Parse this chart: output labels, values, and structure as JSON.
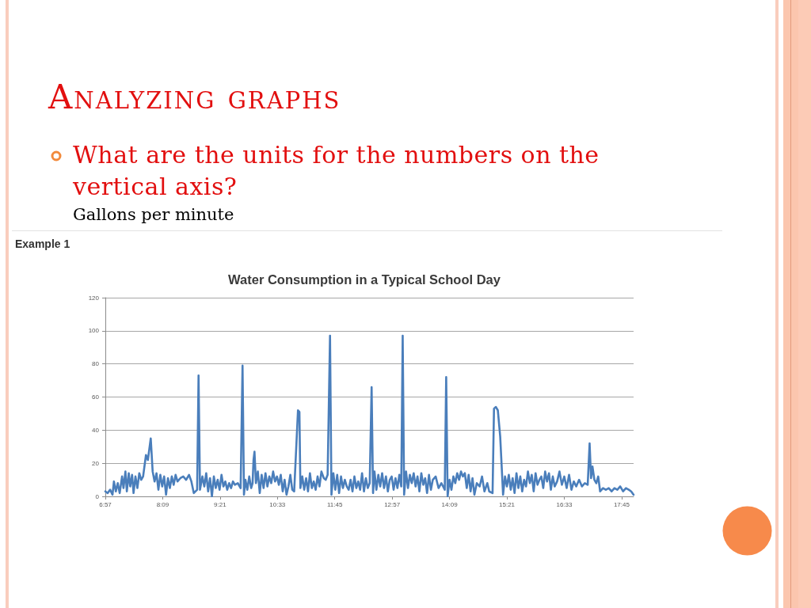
{
  "chart_data": {
    "type": "line",
    "title": "Water Consumption in a Typical School Day",
    "annotations": [
      "Analyzing graphs",
      "What are the units for the numbers on the vertical axis?",
      "Gallons per minute",
      "Example 1"
    ],
    "x": [
      6.95,
      7.0,
      7.05,
      7.1,
      7.13,
      7.17,
      7.21,
      7.25,
      7.3,
      7.33,
      7.37,
      7.4,
      7.44,
      7.47,
      7.51,
      7.54,
      7.58,
      7.62,
      7.66,
      7.7,
      7.74,
      7.8,
      7.84,
      7.9,
      7.94,
      7.98,
      8.02,
      8.06,
      8.1,
      8.14,
      8.18,
      8.22,
      8.26,
      8.3,
      8.34,
      8.38,
      8.42,
      8.46,
      8.52,
      8.58,
      8.64,
      8.7,
      8.75,
      8.8,
      8.87,
      8.9,
      8.93,
      8.98,
      9.02,
      9.06,
      9.1,
      9.14,
      9.18,
      9.22,
      9.26,
      9.3,
      9.34,
      9.38,
      9.42,
      9.46,
      9.5,
      9.54,
      9.58,
      9.62,
      9.66,
      9.72,
      9.78,
      9.82,
      9.85,
      9.88,
      9.92,
      9.96,
      10.0,
      10.03,
      10.05,
      10.07,
      10.1,
      10.14,
      10.18,
      10.22,
      10.26,
      10.3,
      10.34,
      10.38,
      10.42,
      10.46,
      10.5,
      10.54,
      10.58,
      10.62,
      10.66,
      10.7,
      10.74,
      10.78,
      10.82,
      10.86,
      10.9,
      10.98,
      11.01,
      11.03,
      11.07,
      11.11,
      11.15,
      11.19,
      11.23,
      11.27,
      11.31,
      11.35,
      11.39,
      11.43,
      11.47,
      11.52,
      11.56,
      11.6,
      11.65,
      11.68,
      11.72,
      11.76,
      11.8,
      11.84,
      11.88,
      11.92,
      11.96,
      12.0,
      12.04,
      12.08,
      12.12,
      12.16,
      12.2,
      12.24,
      12.28,
      12.32,
      12.36,
      12.4,
      12.44,
      12.48,
      12.52,
      12.55,
      12.58,
      12.62,
      12.66,
      12.7,
      12.74,
      12.78,
      12.82,
      12.86,
      12.9,
      12.94,
      12.98,
      13.02,
      13.06,
      13.1,
      13.14,
      13.17,
      13.2,
      13.24,
      13.28,
      13.32,
      13.36,
      13.4,
      13.44,
      13.48,
      13.52,
      13.56,
      13.6,
      13.64,
      13.68,
      13.72,
      13.76,
      13.8,
      13.86,
      13.92,
      13.98,
      14.05,
      14.08,
      14.11,
      14.15,
      14.19,
      14.23,
      14.27,
      14.31,
      14.35,
      14.39,
      14.43,
      14.47,
      14.51,
      14.55,
      14.59,
      14.63,
      14.67,
      14.72,
      14.78,
      14.83,
      14.88,
      14.94,
      14.98,
      15.05,
      15.08,
      15.12,
      15.16,
      15.21,
      15.27,
      15.31,
      15.35,
      15.39,
      15.43,
      15.47,
      15.51,
      15.55,
      15.59,
      15.63,
      15.67,
      15.71,
      15.75,
      15.79,
      15.83,
      15.87,
      15.91,
      15.95,
      15.99,
      16.03,
      16.07,
      16.11,
      16.15,
      16.19,
      16.23,
      16.27,
      16.31,
      16.35,
      16.4,
      16.45,
      16.5,
      16.55,
      16.6,
      16.65,
      16.7,
      16.75,
      16.8,
      16.86,
      16.92,
      16.98,
      17.04,
      17.08,
      17.11,
      17.14,
      17.18,
      17.22,
      17.26,
      17.3,
      17.36,
      17.42,
      17.48,
      17.54,
      17.6,
      17.66,
      17.72,
      17.78,
      17.84,
      17.9,
      17.95,
      18.0
    ],
    "values": [
      3,
      2,
      4,
      1,
      9,
      3,
      8,
      2,
      12,
      5,
      15,
      3,
      14,
      6,
      13,
      2,
      12,
      5,
      14,
      10,
      12,
      25,
      22,
      35,
      15,
      9,
      14,
      4,
      13,
      6,
      12,
      1,
      11,
      5,
      12,
      7,
      13,
      9,
      11,
      12,
      10,
      13,
      9,
      2,
      4,
      73,
      4,
      12,
      6,
      14,
      3,
      11,
      0,
      12,
      5,
      10,
      4,
      13,
      6,
      9,
      4,
      8,
      5,
      9,
      7,
      8,
      5,
      79,
      1,
      10,
      4,
      12,
      5,
      8,
      22,
      27,
      8,
      15,
      2,
      13,
      5,
      14,
      6,
      12,
      8,
      15,
      9,
      12,
      7,
      13,
      3,
      10,
      1,
      6,
      13,
      4,
      3,
      52,
      51,
      5,
      12,
      4,
      11,
      3,
      14,
      5,
      9,
      4,
      12,
      6,
      15,
      11,
      10,
      13,
      97,
      1,
      14,
      4,
      13,
      2,
      12,
      5,
      10,
      6,
      4,
      10,
      3,
      12,
      5,
      9,
      4,
      14,
      3,
      11,
      5,
      8,
      66,
      2,
      15,
      4,
      13,
      6,
      14,
      5,
      12,
      3,
      10,
      12,
      4,
      11,
      5,
      13,
      6,
      97,
      1,
      15,
      5,
      13,
      8,
      14,
      6,
      12,
      3,
      14,
      7,
      11,
      2,
      13,
      4,
      10,
      12,
      5,
      8,
      4,
      72,
      0,
      10,
      4,
      12,
      8,
      14,
      10,
      15,
      12,
      14,
      5,
      13,
      3,
      11,
      1,
      8,
      6,
      12,
      3,
      8,
      3,
      2,
      53,
      54,
      52,
      36,
      1,
      12,
      6,
      13,
      4,
      11,
      2,
      14,
      5,
      12,
      3,
      10,
      6,
      15,
      8,
      13,
      3,
      14,
      7,
      10,
      12,
      5,
      15,
      9,
      14,
      4,
      12,
      6,
      9,
      15,
      7,
      12,
      5,
      13,
      4,
      9,
      6,
      10,
      6,
      8,
      7,
      32,
      11,
      18,
      10,
      8,
      12,
      3,
      5,
      4,
      5,
      3,
      5,
      4,
      6,
      3,
      5,
      4,
      3,
      1
    ],
    "color": "#4a7ebb",
    "xlim": [
      6.95,
      18.0
    ],
    "xticks": [
      {
        "value": 6.95,
        "label": "6:57"
      },
      {
        "value": 8.15,
        "label": "8:09"
      },
      {
        "value": 9.35,
        "label": "9:21"
      },
      {
        "value": 10.55,
        "label": "10:33"
      },
      {
        "value": 11.75,
        "label": "11:45"
      },
      {
        "value": 12.95,
        "label": "12:57"
      },
      {
        "value": 14.15,
        "label": "14:09"
      },
      {
        "value": 15.35,
        "label": "15:21"
      },
      {
        "value": 16.55,
        "label": "16:33"
      },
      {
        "value": 17.75,
        "label": "17:45"
      }
    ],
    "ylim": [
      0,
      120
    ],
    "yticks": [
      0,
      20,
      40,
      60,
      80,
      100,
      120
    ],
    "grid": "y"
  }
}
